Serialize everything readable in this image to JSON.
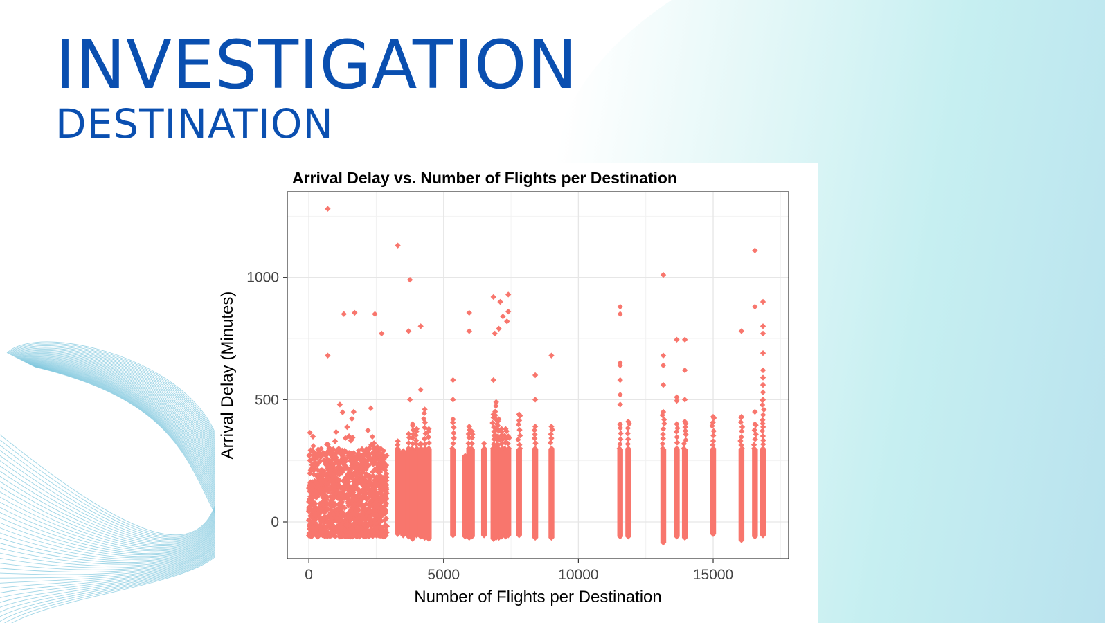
{
  "slide": {
    "title": "INVESTIGATION",
    "subtitle": "DESTINATION",
    "colors": {
      "title": "#0a4fb0",
      "point": "#f8766d",
      "wave": "#7fc7de"
    }
  },
  "chart_data": {
    "type": "scatter",
    "title": "Arrival Delay vs. Number of Flights per Destination",
    "xlabel": "Number of Flights per Destination",
    "ylabel": "Arrival Delay (Minutes)",
    "xlim": [
      -800,
      17800
    ],
    "ylim": [
      -150,
      1350
    ],
    "xticks": [
      0,
      5000,
      10000,
      15000
    ],
    "yticks": [
      0,
      500,
      1000
    ],
    "xtick_labels": [
      "0",
      "5000",
      "10000",
      "15000"
    ],
    "ytick_labels": [
      "0",
      "500",
      "1000"
    ],
    "grid": true,
    "marker": "diamond",
    "color": "#f8766d",
    "dense_band": {
      "x_range": [
        0,
        2900
      ],
      "y_range": [
        -60,
        300
      ]
    },
    "columns": [
      {
        "x": 3300,
        "ymin": -50,
        "ymax": 330
      },
      {
        "x": 3500,
        "ymin": -55,
        "ymax": 290
      },
      {
        "x": 3700,
        "ymin": -60,
        "ymax": 360
      },
      {
        "x": 3850,
        "ymin": -70,
        "ymax": 400
      },
      {
        "x": 4000,
        "ymin": -55,
        "ymax": 380
      },
      {
        "x": 4150,
        "ymin": -60,
        "ymax": 320
      },
      {
        "x": 4300,
        "ymin": -65,
        "ymax": 460
      },
      {
        "x": 4450,
        "ymin": -70,
        "ymax": 380
      },
      {
        "x": 5350,
        "ymin": -55,
        "ymax": 420
      },
      {
        "x": 5800,
        "ymin": -60,
        "ymax": 270
      },
      {
        "x": 5950,
        "ymin": -65,
        "ymax": 390
      },
      {
        "x": 6050,
        "ymin": -60,
        "ymax": 370
      },
      {
        "x": 6500,
        "ymin": -55,
        "ymax": 320
      },
      {
        "x": 6850,
        "ymin": -70,
        "ymax": 440
      },
      {
        "x": 6950,
        "ymin": -65,
        "ymax": 490
      },
      {
        "x": 7050,
        "ymin": -65,
        "ymax": 420
      },
      {
        "x": 7150,
        "ymin": -60,
        "ymax": 380
      },
      {
        "x": 7300,
        "ymin": -60,
        "ymax": 380
      },
      {
        "x": 7400,
        "ymin": -55,
        "ymax": 350
      },
      {
        "x": 7800,
        "ymin": -55,
        "ymax": 440
      },
      {
        "x": 8400,
        "ymin": -65,
        "ymax": 390
      },
      {
        "x": 9000,
        "ymin": -65,
        "ymax": 390
      },
      {
        "x": 11550,
        "ymin": -60,
        "ymax": 400
      },
      {
        "x": 11850,
        "ymin": -60,
        "ymax": 410
      },
      {
        "x": 13150,
        "ymin": -85,
        "ymax": 450
      },
      {
        "x": 13650,
        "ymin": -60,
        "ymax": 400
      },
      {
        "x": 13950,
        "ymin": -65,
        "ymax": 410
      },
      {
        "x": 15000,
        "ymin": -50,
        "ymax": 430
      },
      {
        "x": 16050,
        "ymin": -75,
        "ymax": 430
      },
      {
        "x": 16550,
        "ymin": -60,
        "ymax": 400
      },
      {
        "x": 16850,
        "ymin": -55,
        "ymax": 500
      }
    ],
    "outliers": [
      {
        "x": 700,
        "y": 1280
      },
      {
        "x": 700,
        "y": 680
      },
      {
        "x": 1300,
        "y": 850
      },
      {
        "x": 1700,
        "y": 855
      },
      {
        "x": 2450,
        "y": 850
      },
      {
        "x": 2700,
        "y": 770
      },
      {
        "x": 1150,
        "y": 480
      },
      {
        "x": 2300,
        "y": 465
      },
      {
        "x": 3300,
        "y": 1130
      },
      {
        "x": 3750,
        "y": 990
      },
      {
        "x": 3700,
        "y": 780
      },
      {
        "x": 4150,
        "y": 800
      },
      {
        "x": 4150,
        "y": 540
      },
      {
        "x": 3750,
        "y": 500
      },
      {
        "x": 5350,
        "y": 580
      },
      {
        "x": 5350,
        "y": 500
      },
      {
        "x": 5950,
        "y": 855
      },
      {
        "x": 5950,
        "y": 780
      },
      {
        "x": 6850,
        "y": 920
      },
      {
        "x": 7100,
        "y": 900
      },
      {
        "x": 7400,
        "y": 930
      },
      {
        "x": 7400,
        "y": 860
      },
      {
        "x": 7200,
        "y": 840
      },
      {
        "x": 7350,
        "y": 820
      },
      {
        "x": 7050,
        "y": 790
      },
      {
        "x": 6900,
        "y": 770
      },
      {
        "x": 6850,
        "y": 580
      },
      {
        "x": 8400,
        "y": 600
      },
      {
        "x": 8400,
        "y": 500
      },
      {
        "x": 9000,
        "y": 680
      },
      {
        "x": 11550,
        "y": 880
      },
      {
        "x": 11550,
        "y": 850
      },
      {
        "x": 11550,
        "y": 650
      },
      {
        "x": 11550,
        "y": 640
      },
      {
        "x": 11550,
        "y": 580
      },
      {
        "x": 11550,
        "y": 520
      },
      {
        "x": 11550,
        "y": 480
      },
      {
        "x": 13150,
        "y": 1010
      },
      {
        "x": 13150,
        "y": 680
      },
      {
        "x": 13150,
        "y": 640
      },
      {
        "x": 13150,
        "y": 560
      },
      {
        "x": 13650,
        "y": 745
      },
      {
        "x": 13950,
        "y": 745
      },
      {
        "x": 13950,
        "y": 620
      },
      {
        "x": 13650,
        "y": 510
      },
      {
        "x": 13650,
        "y": 495
      },
      {
        "x": 13950,
        "y": 500
      },
      {
        "x": 16050,
        "y": 780
      },
      {
        "x": 16550,
        "y": 1110
      },
      {
        "x": 16550,
        "y": 880
      },
      {
        "x": 16850,
        "y": 900
      },
      {
        "x": 16850,
        "y": 800
      },
      {
        "x": 16850,
        "y": 770
      },
      {
        "x": 16850,
        "y": 690
      },
      {
        "x": 16850,
        "y": 620
      },
      {
        "x": 16850,
        "y": 590
      },
      {
        "x": 16850,
        "y": 560
      },
      {
        "x": 16850,
        "y": 530
      },
      {
        "x": 16550,
        "y": 450
      }
    ]
  }
}
